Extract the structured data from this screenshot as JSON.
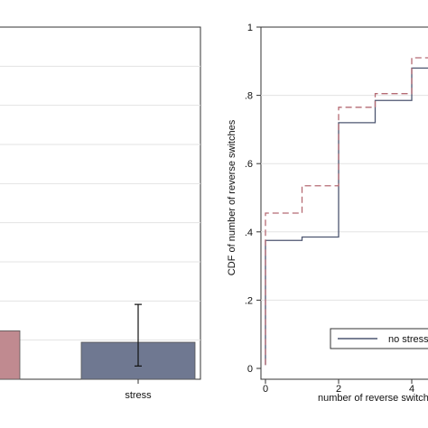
{
  "chart_data": [
    {
      "type": "bar",
      "categories": [
        "",
        "stress"
      ],
      "values": [
        0.55,
        0.42
      ],
      "error_bars": [
        null,
        {
          "low": 0.15,
          "high": 0.85
        }
      ],
      "bar_colors": [
        "#c08a90",
        "#6f7891"
      ],
      "title": "",
      "xlabel": "",
      "ylabel": "",
      "ylim": [
        0,
        4
      ],
      "grid": true
    },
    {
      "type": "line",
      "step": true,
      "title": "",
      "xlabel": "number of reverse switches",
      "ylabel": "CDF of number of reverse switches",
      "xlim": [
        0,
        4.35
      ],
      "ylim": [
        0,
        1
      ],
      "x_ticks": [
        "0",
        "2",
        "4"
      ],
      "x_tick_values": [
        0,
        2,
        4
      ],
      "y_ticks": [
        "0",
        ".2",
        ".4",
        ".6",
        ".8",
        "1"
      ],
      "y_tick_values": [
        0,
        0.2,
        0.4,
        0.6,
        0.8,
        1
      ],
      "grid": true,
      "legend_position": "bottom",
      "series": [
        {
          "name": "no stress",
          "color": "#4d5670",
          "dash": "solid",
          "x": [
            0,
            1,
            2,
            3,
            4
          ],
          "values": [
            0.375,
            0.385,
            0.72,
            0.785,
            0.88
          ]
        },
        {
          "name": "",
          "color": "#b56b74",
          "dash": "dashed",
          "x": [
            0,
            1,
            2,
            3,
            4
          ],
          "values": [
            0.455,
            0.535,
            0.765,
            0.805,
            0.91
          ]
        }
      ]
    }
  ]
}
